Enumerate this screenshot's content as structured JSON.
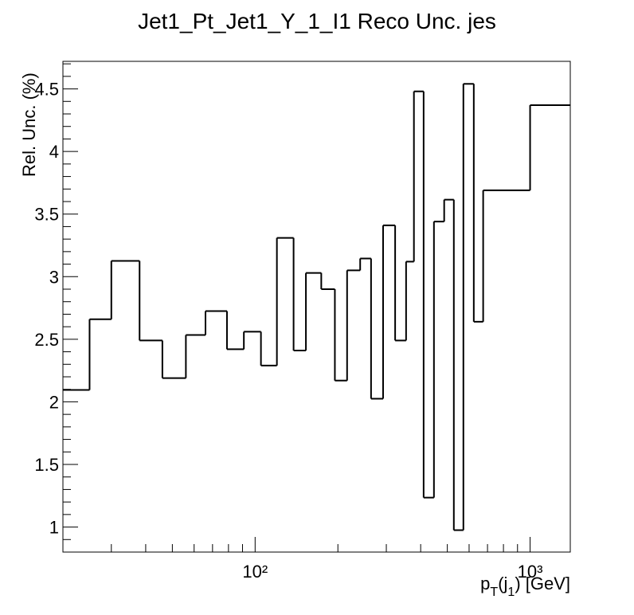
{
  "chart_data": {
    "type": "histogram",
    "title": "Jet1_Pt_Jet1_Y_1_I1 Reco Unc. jes",
    "ylabel": "Rel. Unc. (%)",
    "xlabel": [
      "p",
      "T",
      "(j",
      "1",
      ") [GeV]"
    ],
    "xscale": "log",
    "color": "#000000",
    "bins": [
      20,
      25,
      30,
      38,
      46,
      56,
      66,
      79,
      91,
      105,
      120,
      138,
      153,
      174,
      195,
      216,
      241,
      264,
      292,
      323,
      354,
      378,
      410,
      447,
      487,
      528,
      572,
      624,
      675,
      1000,
      1400
    ],
    "values": [
      2.095,
      2.66,
      3.126,
      2.49,
      2.19,
      2.534,
      2.725,
      2.42,
      2.56,
      2.29,
      3.31,
      2.41,
      3.03,
      2.9,
      2.17,
      3.05,
      3.145,
      2.025,
      3.41,
      2.49,
      3.12,
      4.48,
      1.235,
      3.44,
      3.615,
      0.975,
      4.54,
      2.64,
      3.69,
      4.37
    ],
    "xlim": [
      20,
      1400
    ],
    "ylim": [
      0.8,
      4.72
    ],
    "xticks": [
      {
        "value": 100,
        "label": "10²"
      },
      {
        "value": 1000,
        "label": "10³"
      }
    ],
    "xminorticks": [
      20,
      30,
      40,
      50,
      60,
      70,
      80,
      90,
      200,
      300,
      400,
      500,
      600,
      700,
      800,
      900
    ],
    "yticks": [
      1,
      1.5,
      2,
      2.5,
      3,
      3.5,
      4,
      4.5
    ],
    "yminorticks": [
      0.8,
      0.9,
      1.1,
      1.2,
      1.3,
      1.4,
      1.6,
      1.7,
      1.8,
      1.9,
      2.1,
      2.2,
      2.3,
      2.4,
      2.6,
      2.7,
      2.8,
      2.9,
      3.1,
      3.2,
      3.3,
      3.4,
      3.6,
      3.7,
      3.8,
      3.9,
      4.1,
      4.2,
      4.3,
      4.4,
      4.6,
      4.7
    ]
  }
}
